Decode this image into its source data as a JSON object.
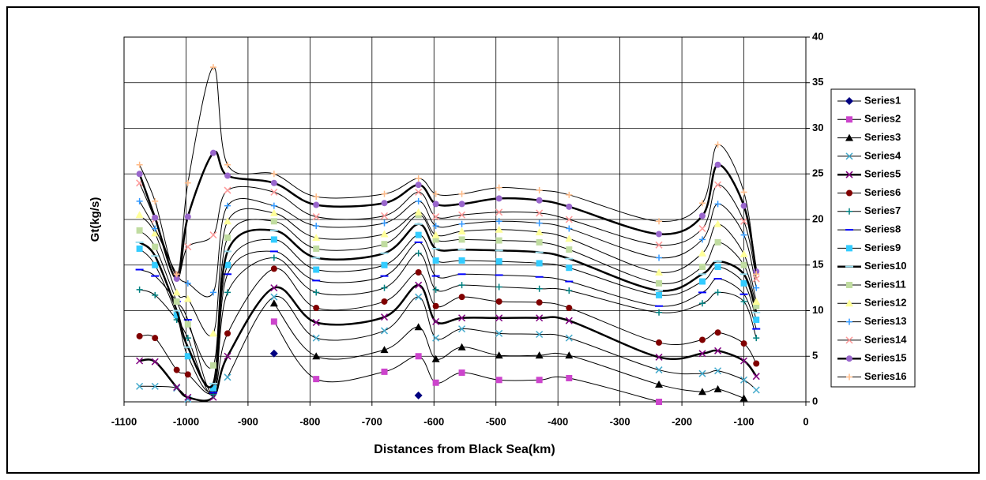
{
  "chart_data": {
    "type": "line",
    "xlabel": "Distances from Black Sea(km)",
    "ylabel": "Gt(kg/s)",
    "x": [
      -1075,
      -1050,
      -1015,
      -997,
      -956,
      -933,
      -858,
      -790,
      -680,
      -625,
      -597,
      -555,
      -495,
      -430,
      -382,
      -237,
      -167,
      -142,
      -100,
      -80
    ],
    "xlim": [
      -1100,
      0
    ],
    "xticks": [
      -1100,
      -1000,
      -900,
      -800,
      -700,
      -600,
      -500,
      -400,
      -300,
      -200,
      -100,
      0
    ],
    "ylim": [
      0,
      40
    ],
    "yticks": [
      0,
      5,
      10,
      15,
      20,
      25,
      30,
      35,
      40
    ],
    "grid": true,
    "smooth": true,
    "legend": "right",
    "series": [
      {
        "name": "Series1",
        "color": "#000080",
        "marker": "diamond",
        "line_width": 1,
        "values": [
          null,
          null,
          null,
          null,
          null,
          null,
          5.3,
          null,
          null,
          0.7,
          null,
          null,
          null,
          null,
          null,
          null,
          null,
          null,
          null,
          null
        ]
      },
      {
        "name": "Series2",
        "color": "#cc44cc",
        "marker": "square",
        "line_width": 1,
        "values": [
          null,
          null,
          null,
          null,
          null,
          null,
          8.8,
          2.5,
          3.3,
          5,
          2.1,
          3.2,
          2.4,
          2.4,
          2.6,
          0,
          null,
          null,
          null,
          null
        ]
      },
      {
        "name": "Series3",
        "color": "#000000",
        "marker": "triangle",
        "line_width": 1,
        "values": [
          null,
          null,
          null,
          null,
          null,
          null,
          10.8,
          5,
          5.7,
          8.2,
          4.7,
          6,
          5.1,
          5.1,
          5.1,
          1.9,
          1.1,
          1.4,
          0.4,
          null
        ]
      },
      {
        "name": "Series4",
        "color": "#44aacc",
        "marker": "x",
        "line_width": 1,
        "values": [
          1.7,
          1.7,
          1.5,
          0.3,
          null,
          2.7,
          11.5,
          7,
          7.8,
          11.5,
          7,
          8,
          7.5,
          7.4,
          7,
          3.5,
          3.1,
          3.4,
          2.4,
          1.3
        ]
      },
      {
        "name": "Series5",
        "color": "#800080",
        "marker": "x",
        "line_width": 2.5,
        "values": [
          4.5,
          4.4,
          1.6,
          0.5,
          0.5,
          5,
          12.5,
          8.7,
          9.3,
          12.8,
          8.8,
          9.2,
          9.2,
          9.2,
          8.9,
          4.9,
          5.3,
          5.6,
          4.5,
          2.8
        ]
      },
      {
        "name": "Series6",
        "color": "#800000",
        "marker": "circle",
        "line_width": 1,
        "values": [
          7.2,
          7,
          3.5,
          3,
          1,
          7.5,
          14.6,
          10.3,
          11,
          14.2,
          10.5,
          11.5,
          11,
          10.9,
          10.3,
          6.5,
          6.8,
          7.6,
          6.4,
          4.2
        ]
      },
      {
        "name": "Series7",
        "color": "#008080",
        "marker": "plus",
        "line_width": 1,
        "values": [
          12.3,
          11.7,
          9,
          7,
          0.8,
          12,
          15.8,
          12,
          12.5,
          16.3,
          12.3,
          12.8,
          12.6,
          12.4,
          12.2,
          9.8,
          10.8,
          12,
          11,
          7
        ]
      },
      {
        "name": "Series8",
        "color": "#0000ff",
        "marker": "dash",
        "line_width": 1,
        "values": [
          14.5,
          13.8,
          11,
          9,
          1,
          14,
          16.5,
          13.3,
          13.8,
          17.5,
          13.8,
          14,
          13.9,
          13.7,
          13.2,
          10.5,
          12,
          13.5,
          11.8,
          8
        ]
      },
      {
        "name": "Series9",
        "color": "#33ccff",
        "marker": "square",
        "line_width": 1,
        "values": [
          16.8,
          15,
          9.5,
          5,
          1.5,
          15,
          17.8,
          14.5,
          15,
          18.3,
          15.5,
          15.5,
          15.4,
          15.2,
          14.7,
          11.7,
          13.2,
          14.8,
          13,
          9
        ]
      },
      {
        "name": "Series10",
        "color": "#99ddee",
        "marker": "dash",
        "line_width": 2.5,
        "values": [
          17.5,
          16,
          10,
          6,
          2,
          16.5,
          18.8,
          15.8,
          16.3,
          19.5,
          16.8,
          16.7,
          16.6,
          16.4,
          15.7,
          12.2,
          14,
          15.4,
          14,
          9.8
        ]
      },
      {
        "name": "Series11",
        "color": "#c0dca0",
        "marker": "square",
        "line_width": 1,
        "values": [
          18.8,
          17,
          11,
          8.5,
          4,
          18,
          19.8,
          16.8,
          17.3,
          20.5,
          17.8,
          17.8,
          17.7,
          17.5,
          16.7,
          13,
          14.8,
          17.5,
          15,
          10.5
        ]
      },
      {
        "name": "Series12",
        "color": "#ffff99",
        "marker": "triangle",
        "line_width": 1,
        "values": [
          20.5,
          18.5,
          12,
          11.3,
          7.5,
          19.8,
          20.7,
          18,
          18.4,
          20.8,
          18.3,
          18.7,
          18.9,
          18.6,
          17.9,
          14.2,
          16.3,
          19.5,
          16.2,
          11
        ]
      },
      {
        "name": "Series13",
        "color": "#3399ff",
        "marker": "plus",
        "line_width": 1,
        "values": [
          22,
          19,
          14,
          13,
          12,
          21.5,
          21.5,
          19.3,
          19.6,
          22,
          19.3,
          19.5,
          19.8,
          19.6,
          19,
          15.8,
          17.8,
          21.7,
          18.3,
          12.5
        ]
      },
      {
        "name": "Series14",
        "color": "#ff9999",
        "marker": "x",
        "line_width": 1,
        "values": [
          24,
          20,
          14,
          17,
          18.3,
          23.2,
          23,
          20.3,
          20.4,
          23,
          20.3,
          20.5,
          20.8,
          20.7,
          20,
          17.2,
          19,
          23.8,
          19.8,
          13.5
        ]
      },
      {
        "name": "Series15",
        "color": "#9966cc",
        "marker": "circle",
        "line_width": 2.5,
        "values": [
          25,
          20.2,
          13.5,
          20.3,
          27.3,
          24.8,
          24,
          21.6,
          21.8,
          23.8,
          21.7,
          21.7,
          22.3,
          22.1,
          21.4,
          18.4,
          20.4,
          26,
          21.5,
          14.3
        ]
      },
      {
        "name": "Series16",
        "color": "#ffbb88",
        "marker": "plus",
        "line_width": 1,
        "values": [
          26,
          22,
          14,
          24,
          36.7,
          26,
          25,
          22.5,
          22.8,
          24.5,
          22.8,
          22.8,
          23.5,
          23.2,
          22.7,
          19.8,
          21.8,
          28.2,
          23,
          14
        ]
      }
    ]
  }
}
